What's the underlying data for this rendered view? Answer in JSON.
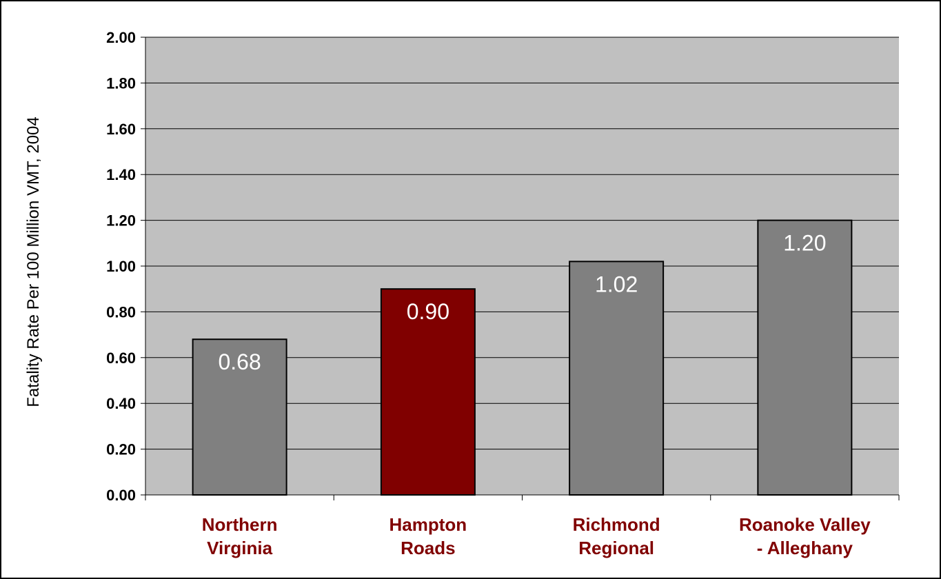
{
  "chart_data": {
    "type": "bar",
    "title": "",
    "xlabel": "",
    "ylabel": "Fatality Rate Per 100 Million VMT, 2004",
    "ylim": [
      0,
      2.0
    ],
    "yticks": [
      "0.00",
      "0.20",
      "0.40",
      "0.60",
      "0.80",
      "1.00",
      "1.20",
      "1.40",
      "1.60",
      "1.80",
      "2.00"
    ],
    "categories": [
      [
        "Northern",
        "Virginia"
      ],
      [
        "Hampton",
        "Roads"
      ],
      [
        "Richmond",
        "Regional"
      ],
      [
        "Roanoke Valley",
        "- Alleghany"
      ]
    ],
    "values": [
      0.68,
      0.9,
      1.02,
      1.2
    ],
    "value_labels": [
      "0.68",
      "0.90",
      "1.02",
      "1.20"
    ],
    "bar_colors": [
      "#808080",
      "#800000",
      "#808080",
      "#808080"
    ],
    "plot_background": "#c0c0c0",
    "category_label_color": "#800000",
    "value_label_color": "#ffffff",
    "grid": true,
    "legend": "none"
  }
}
